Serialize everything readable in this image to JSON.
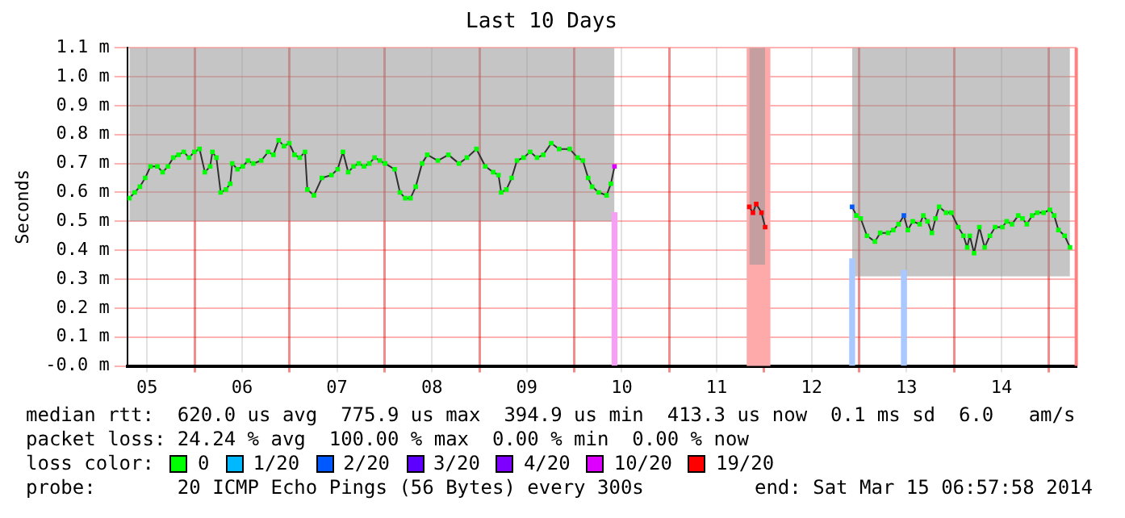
{
  "chart_data": {
    "type": "line",
    "title": "Last 10 Days",
    "ylabel": "Seconds",
    "legend_title": "loss color:",
    "legend": "bottom",
    "grid": true,
    "marker": "square",
    "xlim": [
      "2014-03-05T07:00",
      "2014-03-15T07:00"
    ],
    "xticks": [
      {
        "value": "2014-03-05T12:00",
        "label": "05"
      },
      {
        "value": "2014-03-06T00:00",
        "label": null
      },
      {
        "value": "2014-03-06T12:00",
        "label": "06"
      },
      {
        "value": "2014-03-07T00:00",
        "label": null
      },
      {
        "value": "2014-03-07T12:00",
        "label": "07"
      },
      {
        "value": "2014-03-08T00:00",
        "label": null
      },
      {
        "value": "2014-03-08T12:00",
        "label": "08"
      },
      {
        "value": "2014-03-09T00:00",
        "label": null
      },
      {
        "value": "2014-03-09T12:00",
        "label": "09"
      },
      {
        "value": "2014-03-10T00:00",
        "label": null
      },
      {
        "value": "2014-03-10T12:00",
        "label": "10"
      },
      {
        "value": "2014-03-11T00:00",
        "label": null
      },
      {
        "value": "2014-03-11T12:00",
        "label": "11"
      },
      {
        "value": "2014-03-12T00:00",
        "label": null
      },
      {
        "value": "2014-03-12T12:00",
        "label": "12"
      },
      {
        "value": "2014-03-13T00:00",
        "label": null
      },
      {
        "value": "2014-03-13T12:00",
        "label": "13"
      },
      {
        "value": "2014-03-14T00:00",
        "label": null
      },
      {
        "value": "2014-03-14T12:00",
        "label": "14"
      },
      {
        "value": "2014-03-15T00:00",
        "label": null
      }
    ],
    "ylim": [
      0,
      1.1
    ],
    "yticks": [
      {
        "value": 0,
        "label": "-0.0 m"
      },
      {
        "value": 0.1,
        "label": "0.1 m"
      },
      {
        "value": 0.2,
        "label": "0.2 m"
      },
      {
        "value": 0.3,
        "label": "0.3 m"
      },
      {
        "value": 0.4,
        "label": "0.4 m"
      },
      {
        "value": 0.5,
        "label": "0.5 m"
      },
      {
        "value": 0.6,
        "label": "0.6 m"
      },
      {
        "value": 0.7,
        "label": "0.7 m"
      },
      {
        "value": 0.8,
        "label": "0.8 m"
      },
      {
        "value": 0.9,
        "label": "0.9 m"
      },
      {
        "value": 1.0,
        "label": "1.0 m"
      },
      {
        "value": 1.1,
        "label": "1.1 m"
      }
    ],
    "bands": [
      {
        "axis": "x",
        "from": "2014-03-11T19:35",
        "to": "2014-03-12T01:35",
        "color": "#ffaaaa"
      }
    ],
    "ref_lines": [
      {
        "axis": "x",
        "value": "2014-03-15T06:55",
        "color": "#ff8080"
      }
    ],
    "annotations": [
      "median rtt:  620.0 us avg  775.9 us max  394.9 us min  413.3 us now  0.1 ms sd  6.0   am/s",
      "packet loss: 24.24 % avg  100.00 % max  0.00 % min  0.00 % now",
      "probe:       20 ICMP Echo Pings (56 Bytes) every 300s",
      "end: Sat Mar 15 06:57:58 2014"
    ],
    "series": [
      {
        "type": "bar",
        "x": [
          "2014-03-10T10:10",
          "2014-03-12T22:15",
          "2014-03-13T11:20"
        ],
        "values": [
          0.53,
          0.37,
          0.33
        ],
        "colors": [
          "#f5a0f5",
          "#a8c8ff",
          "#a8c8ff"
        ]
      },
      {
        "color": "#303030",
        "marker": "none",
        "x": [
          "2014-03-05T07:30",
          "2014-03-05T08:50",
          "2014-03-05T10:10",
          "2014-03-05T11:30",
          "2014-03-05T12:50",
          "2014-03-05T14:35",
          "2014-03-05T15:55",
          "2014-03-05T17:15",
          "2014-03-05T18:35",
          "2014-03-05T19:55",
          "2014-03-05T21:15",
          "2014-03-05T22:35",
          "2014-03-05T23:55",
          "2014-03-06T01:15",
          "2014-03-06T02:35",
          "2014-03-06T03:55",
          "2014-03-06T04:30",
          "2014-03-06T05:30",
          "2014-03-06T06:35",
          "2014-03-06T07:55",
          "2014-03-06T09:00",
          "2014-03-06T09:30",
          "2014-03-06T10:50",
          "2014-03-06T12:10",
          "2014-03-06T13:30",
          "2014-03-06T14:50",
          "2014-03-06T16:50",
          "2014-03-06T18:35",
          "2014-03-06T19:55",
          "2014-03-06T21:15",
          "2014-03-06T22:35",
          "2014-03-06T23:55",
          "2014-03-07T01:15",
          "2014-03-07T02:35",
          "2014-03-07T03:55",
          "2014-03-07T04:30",
          "2014-03-07T06:10",
          "2014-03-07T08:10",
          "2014-03-07T10:35",
          "2014-03-07T12:10",
          "2014-03-07T13:30",
          "2014-03-07T14:50",
          "2014-03-07T16:10",
          "2014-03-07T17:30",
          "2014-03-07T18:50",
          "2014-03-07T20:10",
          "2014-03-07T21:30",
          "2014-03-07T22:50",
          "2014-03-08T00:10",
          "2014-03-08T02:35",
          "2014-03-08T03:55",
          "2014-03-08T05:15",
          "2014-03-08T06:35",
          "2014-03-08T07:55",
          "2014-03-08T09:30",
          "2014-03-08T10:50",
          "2014-03-08T13:30",
          "2014-03-08T16:10",
          "2014-03-08T18:50",
          "2014-03-08T20:50",
          "2014-03-08T23:15",
          "2014-03-09T01:30",
          "2014-03-09T03:30",
          "2014-03-09T04:50",
          "2014-03-09T05:30",
          "2014-03-09T06:50",
          "2014-03-09T08:10",
          "2014-03-09T09:30",
          "2014-03-09T11:10",
          "2014-03-09T12:50",
          "2014-03-09T14:35",
          "2014-03-09T16:10",
          "2014-03-09T18:10",
          "2014-03-09T20:10",
          "2014-03-09T22:50",
          "2014-03-10T00:50",
          "2014-03-10T02:10",
          "2014-03-10T03:30",
          "2014-03-10T04:30",
          "2014-03-10T06:10",
          "2014-03-10T08:10",
          "2014-03-10T09:15",
          "2014-03-10T10:10",
          "2014-03-11T03:00",
          "2014-03-11T20:15",
          "2014-03-11T21:10",
          "2014-03-11T22:00",
          "2014-03-11T23:20",
          "2014-03-12T00:15",
          "2014-03-12T12:00",
          "2014-03-12T22:15",
          "2014-03-12T23:20",
          "2014-03-13T00:25",
          "2014-03-13T02:00",
          "2014-03-13T04:00",
          "2014-03-13T05:20",
          "2014-03-13T07:20",
          "2014-03-13T08:40",
          "2014-03-13T10:00",
          "2014-03-13T11:20",
          "2014-03-13T12:20",
          "2014-03-13T13:35",
          "2014-03-13T15:20",
          "2014-03-13T16:15",
          "2014-03-13T17:20",
          "2014-03-13T18:25",
          "2014-03-13T19:20",
          "2014-03-13T20:15",
          "2014-03-13T22:00",
          "2014-03-13T23:20",
          "2014-03-14T01:05",
          "2014-03-14T02:25",
          "2014-03-14T03:20",
          "2014-03-14T04:00",
          "2014-03-14T05:05",
          "2014-03-14T06:25",
          "2014-03-14T07:45",
          "2014-03-14T09:05",
          "2014-03-14T10:25",
          "2014-03-14T12:15",
          "2014-03-14T13:20",
          "2014-03-14T14:40",
          "2014-03-14T16:15",
          "2014-03-14T17:20",
          "2014-03-14T18:25",
          "2014-03-14T19:45",
          "2014-03-14T21:05",
          "2014-03-14T22:40",
          "2014-03-15T00:15",
          "2014-03-15T01:20",
          "2014-03-15T02:25",
          "2014-03-15T04:00",
          "2014-03-15T05:20"
        ],
        "values": [
          0.58,
          0.6,
          0.62,
          0.65,
          0.69,
          0.69,
          0.67,
          0.69,
          0.72,
          0.73,
          0.74,
          0.72,
          0.74,
          0.75,
          0.67,
          0.69,
          0.74,
          0.72,
          0.6,
          0.61,
          0.63,
          0.7,
          0.68,
          0.69,
          0.71,
          0.7,
          0.71,
          0.74,
          0.73,
          0.78,
          0.76,
          0.77,
          0.73,
          0.72,
          0.74,
          0.61,
          0.59,
          0.65,
          0.66,
          0.68,
          0.74,
          0.67,
          0.69,
          0.7,
          0.69,
          0.7,
          0.72,
          0.71,
          0.7,
          0.68,
          0.6,
          0.58,
          0.58,
          0.62,
          0.7,
          0.73,
          0.71,
          0.73,
          0.7,
          0.72,
          0.75,
          0.69,
          0.67,
          0.66,
          0.6,
          0.61,
          0.65,
          0.71,
          0.72,
          0.74,
          0.72,
          0.73,
          0.77,
          0.75,
          0.75,
          0.72,
          0.71,
          0.65,
          0.62,
          0.6,
          0.59,
          0.63,
          0.69,
          null,
          0.55,
          0.53,
          0.56,
          0.53,
          0.48,
          null,
          0.55,
          0.52,
          0.51,
          0.45,
          0.43,
          0.46,
          0.46,
          0.47,
          0.49,
          0.52,
          0.47,
          0.5,
          0.49,
          0.52,
          0.5,
          0.46,
          0.51,
          0.55,
          0.53,
          0.53,
          0.48,
          0.45,
          0.41,
          0.45,
          0.39,
          0.48,
          0.41,
          0.45,
          0.48,
          0.48,
          0.5,
          0.49,
          0.52,
          0.51,
          0.49,
          0.52,
          0.53,
          0.53,
          0.54,
          0.52,
          0.47,
          0.45,
          0.41
        ],
        "lower": [
          0.5,
          0.5,
          0.5,
          0.5,
          0.5,
          0.5,
          0.5,
          0.5,
          0.5,
          0.5,
          0.5,
          0.5,
          0.5,
          0.5,
          0.5,
          0.5,
          0.5,
          0.5,
          0.5,
          0.5,
          0.5,
          0.5,
          0.5,
          0.5,
          0.5,
          0.5,
          0.5,
          0.5,
          0.5,
          0.5,
          0.5,
          0.5,
          0.5,
          0.5,
          0.5,
          0.5,
          0.5,
          0.5,
          0.5,
          0.5,
          0.5,
          0.5,
          0.5,
          0.5,
          0.5,
          0.5,
          0.5,
          0.5,
          0.5,
          0.5,
          0.5,
          0.5,
          0.5,
          0.5,
          0.5,
          0.5,
          0.5,
          0.5,
          0.5,
          0.5,
          0.5,
          0.5,
          0.5,
          0.5,
          0.5,
          0.5,
          0.5,
          0.5,
          0.5,
          0.5,
          0.5,
          0.5,
          0.5,
          0.5,
          0.5,
          0.5,
          0.5,
          0.5,
          0.5,
          0.5,
          0.5,
          0.5,
          0.5,
          null,
          0.35,
          0.35,
          0.35,
          0.35,
          0.35,
          null,
          0.31,
          0.31,
          0.31,
          0.31,
          0.31,
          0.31,
          0.31,
          0.31,
          0.31,
          0.31,
          0.31,
          0.31,
          0.31,
          0.31,
          0.31,
          0.31,
          0.31,
          0.31,
          0.31,
          0.31,
          0.31,
          0.31,
          0.31,
          0.31,
          0.31,
          0.31,
          0.31,
          0.31,
          0.31,
          0.31,
          0.31,
          0.31,
          0.31,
          0.31,
          0.31,
          0.31,
          0.31,
          0.31,
          0.31,
          0.31,
          0.31,
          0.31,
          0.31
        ],
        "upper": [
          1.1,
          1.1,
          1.1,
          1.1,
          1.1,
          1.1,
          1.1,
          1.1,
          1.1,
          1.1,
          1.1,
          1.1,
          1.1,
          1.1,
          1.1,
          1.1,
          1.1,
          1.1,
          1.1,
          1.1,
          1.1,
          1.1,
          1.1,
          1.1,
          1.1,
          1.1,
          1.1,
          1.1,
          1.1,
          1.1,
          1.1,
          1.1,
          1.1,
          1.1,
          1.1,
          1.1,
          1.1,
          1.1,
          1.1,
          1.1,
          1.1,
          1.1,
          1.1,
          1.1,
          1.1,
          1.1,
          1.1,
          1.1,
          1.1,
          1.1,
          1.1,
          1.1,
          1.1,
          1.1,
          1.1,
          1.1,
          1.1,
          1.1,
          1.1,
          1.1,
          1.1,
          1.1,
          1.1,
          1.1,
          1.1,
          1.1,
          1.1,
          1.1,
          1.1,
          1.1,
          1.1,
          1.1,
          1.1,
          1.1,
          1.1,
          1.1,
          1.1,
          1.1,
          1.1,
          1.1,
          1.1,
          1.1,
          1.1,
          null,
          1.1,
          1.1,
          1.1,
          1.1,
          1.1,
          null,
          1.1,
          1.1,
          1.1,
          1.1,
          1.1,
          1.1,
          1.1,
          1.1,
          1.1,
          1.1,
          1.1,
          1.1,
          1.1,
          1.1,
          1.1,
          1.1,
          1.1,
          1.1,
          1.1,
          1.1,
          1.1,
          1.1,
          1.1,
          1.1,
          1.1,
          1.1,
          1.1,
          1.1,
          1.1,
          1.1,
          1.1,
          1.1,
          1.1,
          1.1,
          1.1,
          1.1,
          1.1,
          1.1,
          1.1,
          1.1,
          1.1,
          1.1,
          1.1
        ]
      },
      {
        "type": "scatter",
        "name": "0",
        "color": "#00ff00",
        "x": [
          "2014-03-05T07:30",
          "2014-03-05T08:50",
          "2014-03-05T10:10",
          "2014-03-05T11:30",
          "2014-03-05T12:50",
          "2014-03-05T14:35",
          "2014-03-05T15:55",
          "2014-03-05T17:15",
          "2014-03-05T18:35",
          "2014-03-05T19:55",
          "2014-03-05T21:15",
          "2014-03-05T22:35",
          "2014-03-05T23:55",
          "2014-03-06T01:15",
          "2014-03-06T02:35",
          "2014-03-06T03:55",
          "2014-03-06T04:30",
          "2014-03-06T05:30",
          "2014-03-06T06:35",
          "2014-03-06T07:55",
          "2014-03-06T09:00",
          "2014-03-06T09:30",
          "2014-03-06T10:50",
          "2014-03-06T12:10",
          "2014-03-06T13:30",
          "2014-03-06T14:50",
          "2014-03-06T16:50",
          "2014-03-06T18:35",
          "2014-03-06T19:55",
          "2014-03-06T21:15",
          "2014-03-06T22:35",
          "2014-03-06T23:55",
          "2014-03-07T01:15",
          "2014-03-07T02:35",
          "2014-03-07T03:55",
          "2014-03-07T04:30",
          "2014-03-07T06:10",
          "2014-03-07T08:10",
          "2014-03-07T10:35",
          "2014-03-07T12:10",
          "2014-03-07T13:30",
          "2014-03-07T14:50",
          "2014-03-07T16:10",
          "2014-03-07T17:30",
          "2014-03-07T18:50",
          "2014-03-07T20:10",
          "2014-03-07T21:30",
          "2014-03-07T22:50",
          "2014-03-08T00:10",
          "2014-03-08T02:35",
          "2014-03-08T03:55",
          "2014-03-08T05:15",
          "2014-03-08T06:35",
          "2014-03-08T07:55",
          "2014-03-08T09:30",
          "2014-03-08T10:50",
          "2014-03-08T13:30",
          "2014-03-08T16:10",
          "2014-03-08T18:50",
          "2014-03-08T20:50",
          "2014-03-08T23:15",
          "2014-03-09T01:30",
          "2014-03-09T03:30",
          "2014-03-09T04:50",
          "2014-03-09T05:30",
          "2014-03-09T06:50",
          "2014-03-09T08:10",
          "2014-03-09T09:30",
          "2014-03-09T11:10",
          "2014-03-09T12:50",
          "2014-03-09T14:35",
          "2014-03-09T16:10",
          "2014-03-09T18:10",
          "2014-03-09T20:10",
          "2014-03-09T22:50",
          "2014-03-10T00:50",
          "2014-03-10T02:10",
          "2014-03-10T03:30",
          "2014-03-10T04:30",
          "2014-03-10T06:10",
          "2014-03-10T08:10",
          "2014-03-10T09:15",
          "2014-03-12T23:20",
          "2014-03-13T00:25",
          "2014-03-13T02:00",
          "2014-03-13T04:00",
          "2014-03-13T05:20",
          "2014-03-13T07:20",
          "2014-03-13T08:40",
          "2014-03-13T10:00",
          "2014-03-13T12:20",
          "2014-03-13T13:35",
          "2014-03-13T15:20",
          "2014-03-13T16:15",
          "2014-03-13T17:20",
          "2014-03-13T18:25",
          "2014-03-13T19:20",
          "2014-03-13T20:15",
          "2014-03-13T22:00",
          "2014-03-13T23:20",
          "2014-03-14T01:05",
          "2014-03-14T02:25",
          "2014-03-14T03:20",
          "2014-03-14T04:00",
          "2014-03-14T05:05",
          "2014-03-14T06:25",
          "2014-03-14T07:45",
          "2014-03-14T09:05",
          "2014-03-14T10:25",
          "2014-03-14T12:15",
          "2014-03-14T13:20",
          "2014-03-14T14:40",
          "2014-03-14T16:15",
          "2014-03-14T17:20",
          "2014-03-14T18:25",
          "2014-03-14T19:45",
          "2014-03-14T21:05",
          "2014-03-14T22:40",
          "2014-03-15T00:15",
          "2014-03-15T01:20",
          "2014-03-15T02:25",
          "2014-03-15T04:00",
          "2014-03-15T05:20"
        ],
        "values": [
          0.58,
          0.6,
          0.62,
          0.65,
          0.69,
          0.69,
          0.67,
          0.69,
          0.72,
          0.73,
          0.74,
          0.72,
          0.74,
          0.75,
          0.67,
          0.69,
          0.74,
          0.72,
          0.6,
          0.61,
          0.63,
          0.7,
          0.68,
          0.69,
          0.71,
          0.7,
          0.71,
          0.74,
          0.73,
          0.78,
          0.76,
          0.77,
          0.73,
          0.72,
          0.74,
          0.61,
          0.59,
          0.65,
          0.66,
          0.68,
          0.74,
          0.67,
          0.69,
          0.7,
          0.69,
          0.7,
          0.72,
          0.71,
          0.7,
          0.68,
          0.6,
          0.58,
          0.58,
          0.62,
          0.7,
          0.73,
          0.71,
          0.73,
          0.7,
          0.72,
          0.75,
          0.69,
          0.67,
          0.66,
          0.6,
          0.61,
          0.65,
          0.71,
          0.72,
          0.74,
          0.72,
          0.73,
          0.77,
          0.75,
          0.75,
          0.72,
          0.71,
          0.65,
          0.62,
          0.6,
          0.59,
          0.63,
          0.52,
          0.51,
          0.45,
          0.43,
          0.46,
          0.46,
          0.47,
          0.49,
          0.47,
          0.5,
          0.49,
          0.52,
          0.5,
          0.46,
          0.51,
          0.55,
          0.53,
          0.53,
          0.48,
          0.45,
          0.41,
          0.45,
          0.39,
          0.48,
          0.41,
          0.45,
          0.48,
          0.48,
          0.5,
          0.49,
          0.52,
          0.51,
          0.49,
          0.52,
          0.53,
          0.53,
          0.54,
          0.52,
          0.47,
          0.45,
          0.41
        ]
      },
      {
        "type": "scatter",
        "name": "1/20",
        "color": "#00b8ff"
      },
      {
        "type": "scatter",
        "name": "2/20",
        "color": "#0059ff",
        "x": [
          "2014-03-12T22:15",
          "2014-03-13T11:20"
        ],
        "values": [
          0.55,
          0.52
        ]
      },
      {
        "type": "scatter",
        "name": "3/20",
        "color": "#5e00ff"
      },
      {
        "type": "scatter",
        "name": "4/20",
        "color": "#7e00ff"
      },
      {
        "type": "scatter",
        "name": "10/20",
        "color": "#dd00ff",
        "x": [
          "2014-03-10T10:10"
        ],
        "values": [
          0.69
        ]
      },
      {
        "type": "scatter",
        "name": "19/20",
        "color": "#ff0000",
        "x": [
          "2014-03-11T20:15",
          "2014-03-11T21:10",
          "2014-03-11T22:00",
          "2014-03-11T23:20",
          "2014-03-12T00:15"
        ],
        "values": [
          0.55,
          0.53,
          0.56,
          0.53,
          0.48
        ]
      }
    ]
  }
}
